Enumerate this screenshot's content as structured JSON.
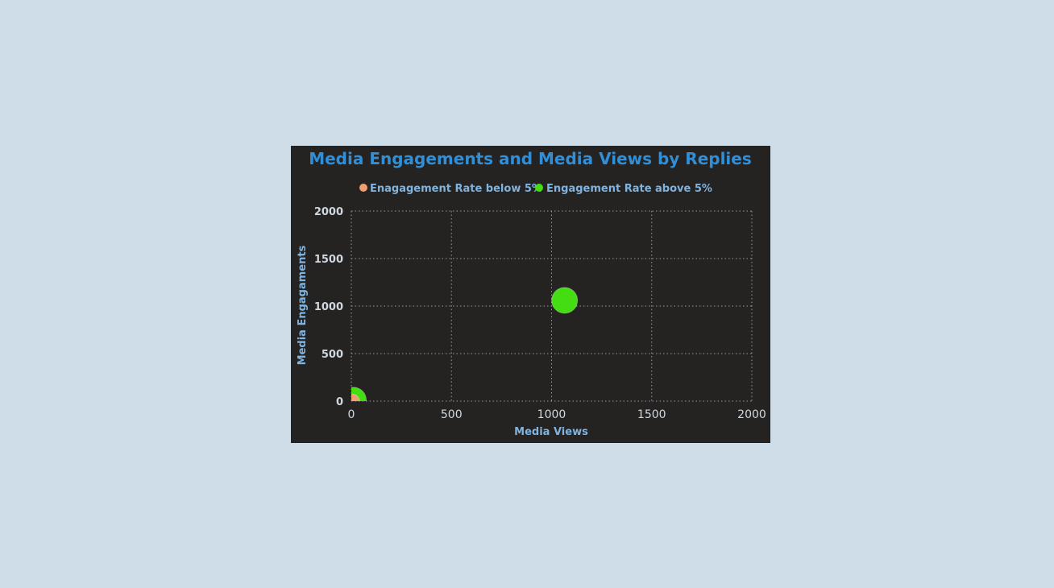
{
  "chart_data": {
    "type": "scatter",
    "title": "Media Engagements and Media Views by Replies",
    "xlabel": "Media Views",
    "ylabel": "Media Engagaments",
    "xlim": [
      0,
      2000
    ],
    "ylim": [
      0,
      2000
    ],
    "x_ticks": [
      "0",
      "500",
      "1000",
      "1500",
      "2000"
    ],
    "y_ticks": [
      "0",
      "500",
      "1000",
      "1500",
      "2000"
    ],
    "grid": true,
    "legend_position": "top-center",
    "series": [
      {
        "name": "Enagagement Rate below 5%",
        "color": "#f0a070",
        "points": [
          {
            "x": 5,
            "y": 2,
            "size": 1
          }
        ]
      },
      {
        "name": "Engagement Rate above 5%",
        "color": "#44dd11",
        "points": [
          {
            "x": 1065,
            "y": 1060,
            "size": 3
          },
          {
            "x": 10,
            "y": 10,
            "size": 3
          }
        ]
      }
    ]
  }
}
